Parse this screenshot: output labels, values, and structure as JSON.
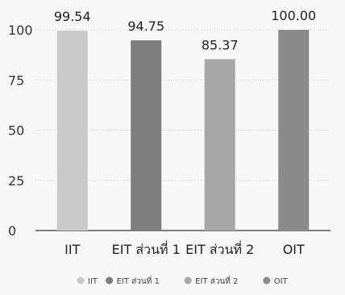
{
  "chart_data": {
    "type": "bar",
    "title": "",
    "xlabel": "",
    "ylabel": "",
    "ylim": [
      0,
      100
    ],
    "yticks": [
      0,
      25,
      50,
      75,
      100
    ],
    "ytick_labels": [
      "0",
      "25",
      "50",
      "75",
      "100"
    ],
    "grid": true,
    "legend": "bottom",
    "categories": [
      "IIT",
      "EIT ส่วนที่ 1",
      "EIT ส่วนที่ 2",
      "OIT"
    ],
    "values": [
      99.54,
      94.75,
      85.37,
      100.0
    ],
    "value_labels": [
      "99.54",
      "94.75",
      "85.37",
      "100.00"
    ],
    "colors": [
      "#c9c9c9",
      "#7d7d7d",
      "#a7a7a7",
      "#8a8a8a"
    ],
    "legend_entries": [
      "IIT",
      "EIT ส่วนที่ 1",
      "EIT ส่วนที่ 2",
      "OIT"
    ]
  }
}
